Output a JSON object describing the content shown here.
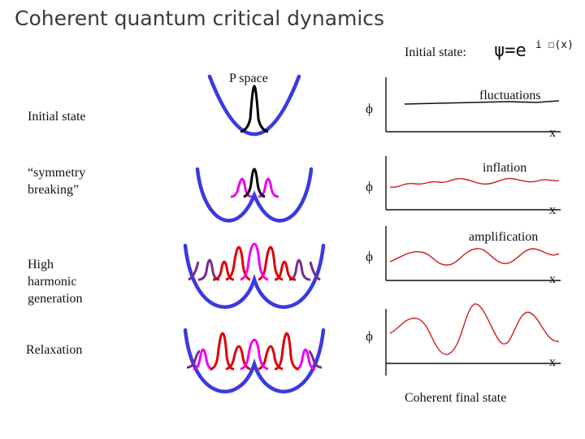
{
  "title": "Coherent quantum critical dynamics",
  "initial_state_formula": {
    "label": "Initial state:",
    "psi": "ψ=e",
    "exponent": "i ☐(x)"
  },
  "p_space_label": "P space",
  "rows": [
    {
      "label": "Initial state",
      "plot_label": "fluctuations"
    },
    {
      "label": "“symmetry\nbreaking”",
      "plot_label": "inflation"
    },
    {
      "label": "High\nharmonic\ngeneration",
      "plot_label": "amplification"
    },
    {
      "label": "Relaxation",
      "plot_label": ""
    }
  ],
  "axis": {
    "y_symbol": "ϕ",
    "x_symbol": "x"
  },
  "footer": "Coherent final state",
  "colors": {
    "potential": "#3a3ae0",
    "peak_black": "#000000",
    "peak_magenta": "#ee00ee",
    "peak_red": "#dd0000",
    "peak_purple": "#7a2a8a",
    "wave_red": "#cc2020"
  }
}
